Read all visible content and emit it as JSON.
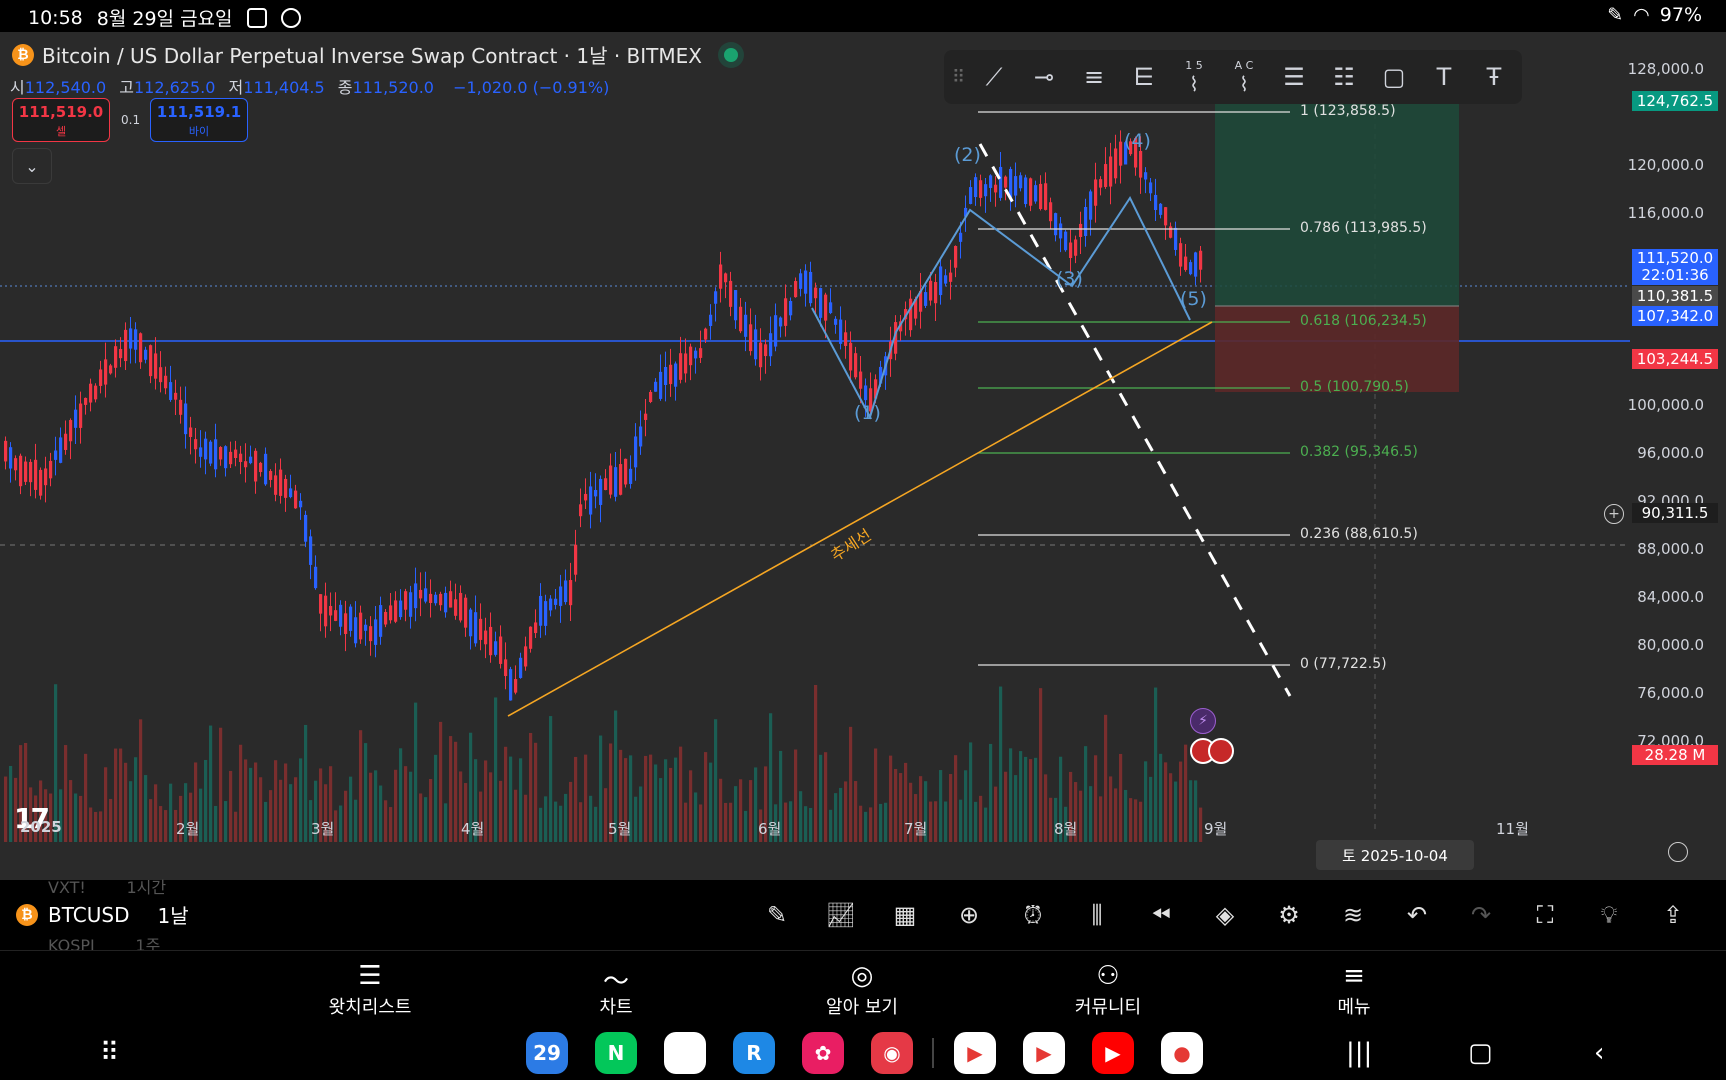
{
  "status": {
    "time": "10:58",
    "date": "8월 29일 금요일",
    "battery": "97%"
  },
  "chart": {
    "title": "Bitcoin / US Dollar Perpetual Inverse Swap Contract · 1날 · BITMEX",
    "ohlc": {
      "o_label": "시",
      "o": "112,540.0",
      "h_label": "고",
      "h": "112,625.0",
      "l_label": "저",
      "l": "111,404.5",
      "c_label": "종",
      "c": "111,520.0",
      "change": "−1,020.0 (−0.91%)"
    },
    "sell": {
      "price": "111,519.0",
      "label": "셀"
    },
    "buy": {
      "price": "111,519.1",
      "label": "바이"
    },
    "spread": "0.1",
    "collapse_icon": "chevron-down-icon",
    "drawing_tools": [
      "trend-line-icon",
      "horizontal-ray-icon",
      "parallel-channel-icon",
      "pitchfork-icon",
      "elliott-wave-icon",
      "abcd-pattern-icon",
      "fib-retracement-icon",
      "fib-extension-icon",
      "rectangle-icon",
      "text-icon",
      "anchored-text-icon"
    ],
    "drawing_tool_labels": {
      "elliott": "1 5",
      "abcd": "A C"
    },
    "price_axis": [
      "128,000.0",
      "120,000.0",
      "116,000.0",
      "100,000.0",
      "96,000.0",
      "92,000.0",
      "88,000.0",
      "84,000.0",
      "80,000.0",
      "76,000.0",
      "72,000.0"
    ],
    "price_tags": {
      "target": "124,762.5",
      "last": "111,520.0",
      "countdown": "22:01:36",
      "gray": "110,381.5",
      "blue_line": "107,342.0",
      "stop": "103,244.5",
      "crosshair": "90,311.5",
      "volume": "28.28 M"
    },
    "time_axis": [
      "2025",
      "2월",
      "3월",
      "4월",
      "5월",
      "6월",
      "7월",
      "8월",
      "9월",
      "11월"
    ],
    "crosshair_date": "토 2025-10-04",
    "fib_levels": [
      {
        "label": "1 (123,858.5)",
        "color": "#e0e0e0"
      },
      {
        "label": "0.786 (113,985.5)",
        "color": "#e0e0e0"
      },
      {
        "label": "0.618 (106,234.5)",
        "color": "#4caf50"
      },
      {
        "label": "0.5 (100,790.5)",
        "color": "#4caf50"
      },
      {
        "label": "0.382 (95,346.5)",
        "color": "#4caf50"
      },
      {
        "label": "0.236 (88,610.5)",
        "color": "#e0e0e0"
      },
      {
        "label": "0 (77,722.5)",
        "color": "#e0e0e0"
      }
    ],
    "waves": [
      "(1)",
      "(2)",
      "(3)",
      "(4)",
      "(5)"
    ],
    "trendline_label": "추세선",
    "logo": "17"
  },
  "toolbar": {
    "symbol": "BTCUSD",
    "interval": "1날",
    "ghost_above": [
      "VXT!",
      "1시간"
    ],
    "ghost_below": [
      "KOSPI",
      "1주"
    ],
    "icons": [
      "draw-icon",
      "indicators-icon",
      "templates-icon",
      "add-icon",
      "alert-icon",
      "candle-type-icon",
      "replay-icon",
      "layers-icon",
      "settings-icon",
      "compare-icon",
      "undo-icon",
      "redo-icon",
      "fullscreen-icon",
      "idea-icon",
      "share-icon"
    ]
  },
  "bottom_nav": [
    "왓치리스트",
    "차트",
    "알아 보기",
    "커뮤니티",
    "메뉴"
  ],
  "dock": {
    "apps": [
      {
        "name": "calendar-app",
        "label": "29",
        "color": "#2c7be5"
      },
      {
        "name": "naver-app",
        "label": "N",
        "color": "#03c75a"
      },
      {
        "name": "chrome-app",
        "label": "",
        "color": "#ffffff"
      },
      {
        "name": "r-app",
        "label": "R",
        "color": "#1e88e5"
      },
      {
        "name": "flower-app",
        "label": "✿",
        "color": "#e91e63"
      },
      {
        "name": "camera-app",
        "label": "◉",
        "color": "#e53946"
      },
      {
        "name": "play-store-app",
        "label": "▶",
        "color": "#ffffff"
      },
      {
        "name": "youtube-app",
        "label": "▶",
        "color": "#ffffff"
      },
      {
        "name": "youtube-red-app",
        "label": "▶",
        "color": "#ff0000"
      },
      {
        "name": "whale-app",
        "label": "●",
        "color": "#ffffff"
      }
    ]
  }
}
